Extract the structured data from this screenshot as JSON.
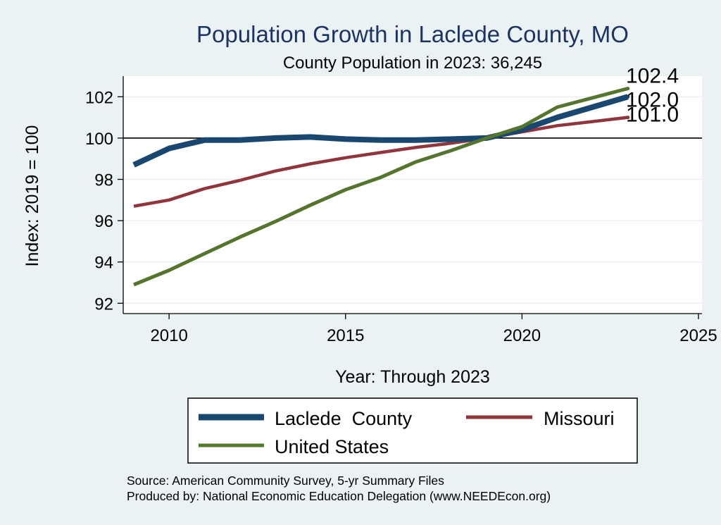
{
  "chart_data": {
    "type": "line",
    "title": "Population Growth in Laclede County, MO",
    "subtitle": "County Population in 2023: 36,245",
    "xlabel": "Year: Through 2023",
    "ylabel": "Index: 2019 = 100",
    "xlim": [
      2008.7,
      2025.1
    ],
    "ylim": [
      91.5,
      103
    ],
    "xticks": [
      2010,
      2015,
      2020,
      2025
    ],
    "yticks": [
      92,
      94,
      96,
      98,
      100,
      102
    ],
    "reference_line": 100,
    "grid": true,
    "legend_position": "bottom",
    "x": [
      2009,
      2010,
      2011,
      2012,
      2013,
      2014,
      2015,
      2016,
      2017,
      2018,
      2019,
      2020,
      2021,
      2022,
      2023
    ],
    "series": [
      {
        "name": "Laclede  County",
        "color": "#1a476f",
        "values": [
          98.7,
          99.5,
          99.9,
          99.9,
          100.0,
          100.05,
          99.95,
          99.9,
          99.9,
          99.95,
          100.0,
          100.4,
          101.0,
          101.5,
          102.0
        ],
        "end_label": "102.0"
      },
      {
        "name": "Missouri",
        "color": "#90353b",
        "values": [
          96.7,
          97.0,
          97.55,
          97.95,
          98.4,
          98.75,
          99.05,
          99.3,
          99.55,
          99.75,
          100.0,
          100.3,
          100.6,
          100.8,
          101.0
        ],
        "end_label": "101.0"
      },
      {
        "name": "United States",
        "color": "#55752f",
        "values": [
          92.9,
          93.6,
          94.4,
          95.2,
          95.95,
          96.75,
          97.5,
          98.1,
          98.85,
          99.4,
          100.0,
          100.55,
          101.5,
          101.95,
          102.4
        ],
        "end_label": "102.4"
      }
    ]
  },
  "notes": {
    "source": "Source: American Community Survey, 5-yr Summary Files",
    "produced_by": "Produced by: National Economic Education Delegation (www.NEEDEcon.org)"
  }
}
